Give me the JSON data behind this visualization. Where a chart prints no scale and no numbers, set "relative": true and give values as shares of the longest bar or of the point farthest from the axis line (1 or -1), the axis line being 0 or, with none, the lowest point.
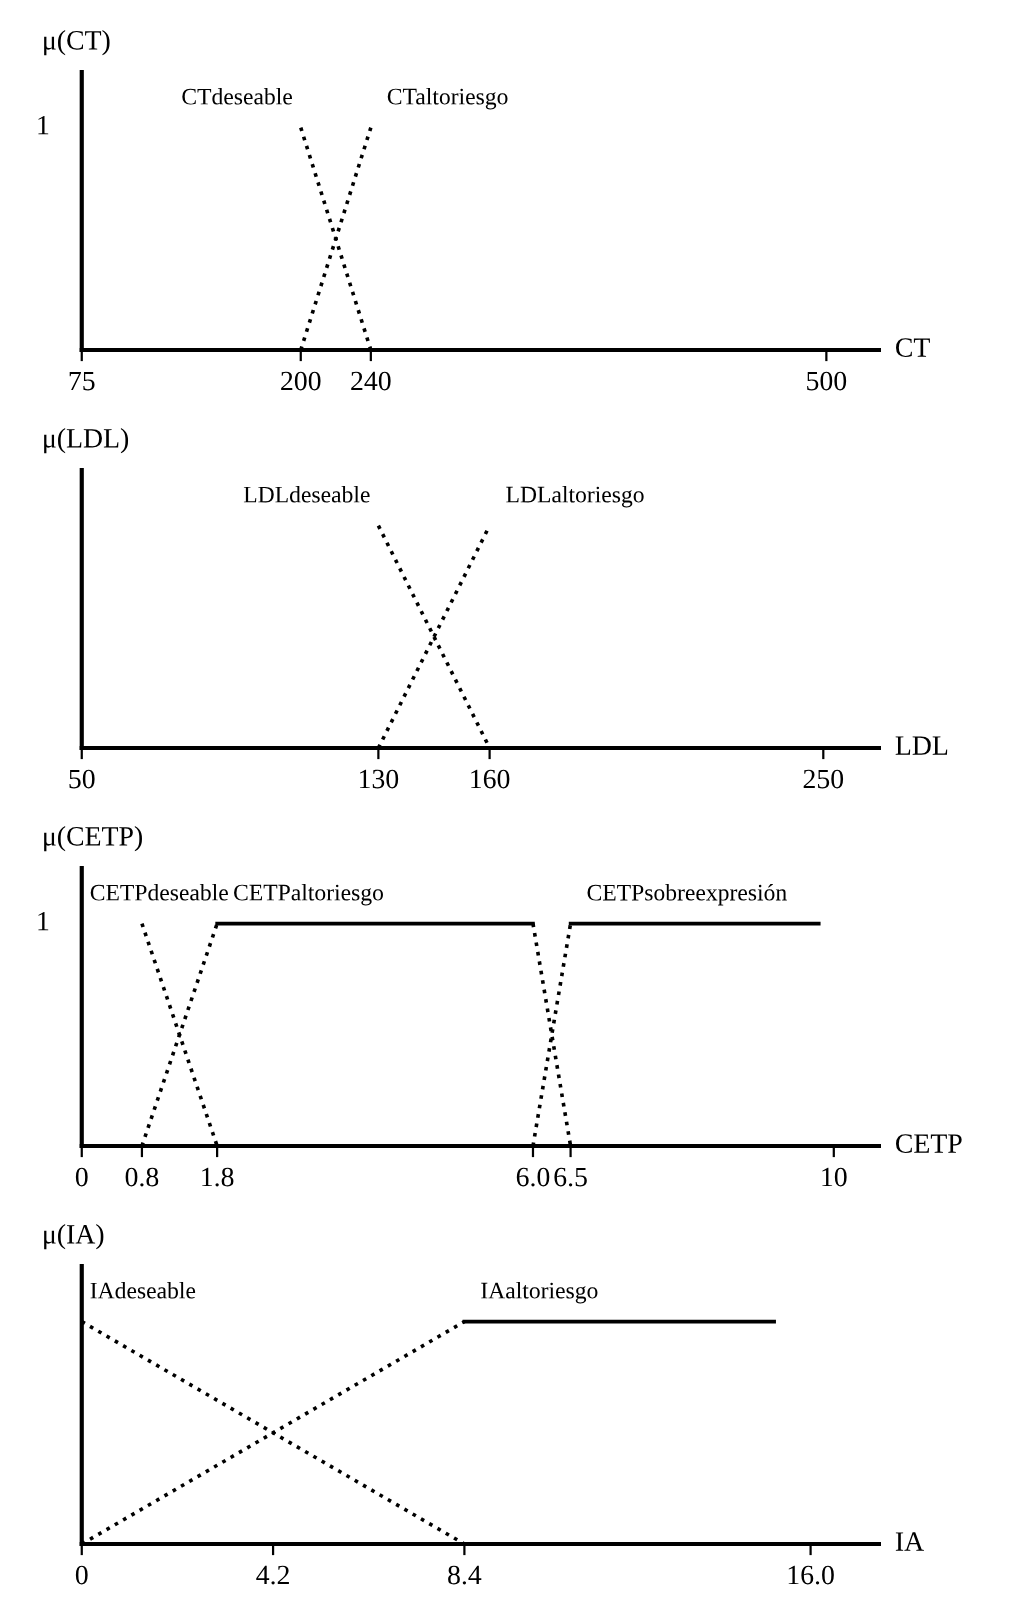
{
  "chart_data": [
    {
      "type": "line",
      "relative": true,
      "ylabel": "μ(CT)",
      "xlabel": "CT",
      "xlim": [
        75,
        530
      ],
      "xticks": [
        75,
        200,
        240,
        500
      ],
      "annotations": [
        "1"
      ],
      "legend": false,
      "grid": false,
      "series": [
        {
          "name": "CTdeseable",
          "color": "#000000",
          "line_style": "dotted",
          "x": [
            200,
            240
          ],
          "values": [
            1,
            0
          ]
        },
        {
          "name": "CTaltoriesgo",
          "color": "#000000",
          "line_style": "dotted",
          "x": [
            200,
            240
          ],
          "values": [
            0,
            1
          ]
        }
      ]
    },
    {
      "type": "line",
      "relative": true,
      "ylabel": "μ(LDL)",
      "xlabel": "LDL",
      "xlim": [
        50,
        265
      ],
      "xticks": [
        50,
        130,
        160,
        250
      ],
      "legend": false,
      "grid": false,
      "series": [
        {
          "name": "LDLdeseable",
          "color": "#000000",
          "line_style": "dotted",
          "x": [
            130,
            160
          ],
          "values": [
            1,
            0
          ]
        },
        {
          "name": "LDLaltoriesgo",
          "color": "#000000",
          "line_style": "dotted",
          "x": [
            130,
            160
          ],
          "values": [
            0,
            1
          ]
        }
      ]
    },
    {
      "type": "line",
      "relative": true,
      "ylabel": "μ(CETP)",
      "xlabel": "CETP",
      "xlim": [
        0,
        10.6
      ],
      "xticks": [
        0,
        0.8,
        1.8,
        {
          "value": 6,
          "label": "6.0"
        },
        6.5,
        10
      ],
      "annotations": [
        "1"
      ],
      "legend": false,
      "grid": false,
      "series": [
        {
          "name": "CETPdeseable",
          "color": "#000000",
          "line_style": "dotted",
          "x": [
            0.8,
            1.8
          ],
          "values": [
            1,
            0
          ]
        },
        {
          "name": "CETPaltoriesgo",
          "color": "#000000",
          "line_style": "dotted",
          "x": [
            0.8,
            1.8
          ],
          "values": [
            0,
            1
          ]
        },
        {
          "color": "#000000",
          "line_style": "solid",
          "x": [
            1.8,
            6
          ],
          "values": [
            1,
            1
          ]
        },
        {
          "color": "#000000",
          "line_style": "dotted",
          "x": [
            6,
            6.5
          ],
          "values": [
            1,
            0
          ]
        },
        {
          "name": "CETPsobreexpresión",
          "color": "#000000",
          "line_style": "dotted",
          "x": [
            6,
            6.5
          ],
          "values": [
            0,
            1
          ]
        },
        {
          "color": "#000000",
          "line_style": "solid",
          "x": [
            6.5,
            9.8
          ],
          "values": [
            1,
            1
          ]
        }
      ]
    },
    {
      "type": "line",
      "relative": true,
      "ylabel": "μ(IA)",
      "xlabel": "IA",
      "xlim": [
        0,
        17.5
      ],
      "xticks": [
        0,
        4.2,
        8.4,
        {
          "value": 16,
          "label": "16.0"
        }
      ],
      "legend": false,
      "grid": false,
      "series": [
        {
          "name": "IAdeseable",
          "color": "#000000",
          "line_style": "dotted",
          "x": [
            0,
            8.4
          ],
          "values": [
            1,
            0
          ]
        },
        {
          "name": "IAaltoriesgo",
          "color": "#000000",
          "line_style": "dotted",
          "x": [
            0,
            8.4
          ],
          "values": [
            0,
            1
          ]
        },
        {
          "color": "#000000",
          "line_style": "solid",
          "x": [
            8.4,
            15.2
          ],
          "values": [
            1,
            1
          ]
        }
      ]
    }
  ]
}
